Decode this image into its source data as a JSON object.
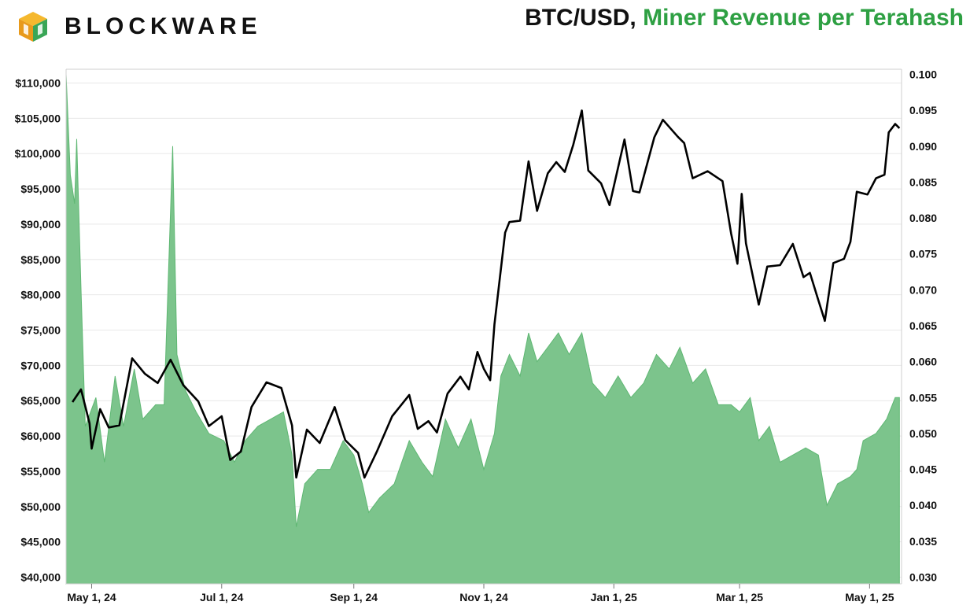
{
  "brand": {
    "name": "BLOCKWARE"
  },
  "title": {
    "part1": "BTC/USD,",
    "part2": "Miner Revenue per Terahash"
  },
  "colors": {
    "price_line": "#000000",
    "revenue_fill": "#7cc48c",
    "revenue_stroke": "#5fb773",
    "title_green": "#2ea043",
    "grid": "#e8e8e8"
  },
  "chart_data": {
    "type": "line",
    "title": "BTC/USD, Miner Revenue per Terahash",
    "xlabel": "",
    "x_ticks": [
      "May 1, 24",
      "Jul 1, 24",
      "Sep 1, 24",
      "Nov 1, 24",
      "Jan 1, 25",
      "Mar 1, 25",
      "May 1, 25"
    ],
    "y_left_ticks": [
      "$40,000",
      "$45,000",
      "$50,000",
      "$55,000",
      "$60,000",
      "$65,000",
      "$70,000",
      "$75,000",
      "$80,000",
      "$85,000",
      "$90,000",
      "$95,000",
      "$100,000",
      "$105,000",
      "$110,000"
    ],
    "y_right_ticks": [
      "0.030",
      "0.035",
      "0.040",
      "0.045",
      "0.050",
      "0.055",
      "0.060",
      "0.065",
      "0.070",
      "0.075",
      "0.080",
      "0.085",
      "0.090",
      "0.095",
      "0.100"
    ],
    "ylim_left": [
      40000,
      110000
    ],
    "ylim_right": [
      0.03,
      0.1
    ],
    "grid": true,
    "series": [
      {
        "name": "BTC/USD",
        "axis": "left",
        "chart": "line",
        "points": [
          [
            "2024-04-22",
            64800
          ],
          [
            "2024-04-26",
            66600
          ],
          [
            "2024-04-30",
            61800
          ],
          [
            "2024-05-01",
            58200
          ],
          [
            "2024-05-05",
            63800
          ],
          [
            "2024-05-09",
            61200
          ],
          [
            "2024-05-14",
            61500
          ],
          [
            "2024-05-20",
            71000
          ],
          [
            "2024-05-26",
            68800
          ],
          [
            "2024-06-01",
            67500
          ],
          [
            "2024-06-07",
            70800
          ],
          [
            "2024-06-13",
            67200
          ],
          [
            "2024-06-20",
            64900
          ],
          [
            "2024-06-25",
            61400
          ],
          [
            "2024-07-01",
            62800
          ],
          [
            "2024-07-05",
            56600
          ],
          [
            "2024-07-10",
            57800
          ],
          [
            "2024-07-15",
            64100
          ],
          [
            "2024-07-22",
            67600
          ],
          [
            "2024-07-29",
            66800
          ],
          [
            "2024-08-03",
            61500
          ],
          [
            "2024-08-05",
            54100
          ],
          [
            "2024-08-10",
            60900
          ],
          [
            "2024-08-16",
            59000
          ],
          [
            "2024-08-23",
            64100
          ],
          [
            "2024-08-28",
            59400
          ],
          [
            "2024-09-03",
            57600
          ],
          [
            "2024-09-06",
            54100
          ],
          [
            "2024-09-12",
            57900
          ],
          [
            "2024-09-19",
            62800
          ],
          [
            "2024-09-27",
            65800
          ],
          [
            "2024-10-01",
            61000
          ],
          [
            "2024-10-06",
            62100
          ],
          [
            "2024-10-10",
            60500
          ],
          [
            "2024-10-15",
            66000
          ],
          [
            "2024-10-21",
            68400
          ],
          [
            "2024-10-25",
            66600
          ],
          [
            "2024-10-29",
            71900
          ],
          [
            "2024-11-01",
            69500
          ],
          [
            "2024-11-04",
            67900
          ],
          [
            "2024-11-06",
            75800
          ],
          [
            "2024-11-11",
            88800
          ],
          [
            "2024-11-13",
            90300
          ],
          [
            "2024-11-18",
            90500
          ],
          [
            "2024-11-22",
            98900
          ],
          [
            "2024-11-26",
            91900
          ],
          [
            "2024-12-01",
            97200
          ],
          [
            "2024-12-05",
            98800
          ],
          [
            "2024-12-09",
            97400
          ],
          [
            "2024-12-13",
            101300
          ],
          [
            "2024-12-17",
            106100
          ],
          [
            "2024-12-20",
            97600
          ],
          [
            "2024-12-26",
            95800
          ],
          [
            "2024-12-30",
            92700
          ],
          [
            "2025-01-06",
            102000
          ],
          [
            "2025-01-10",
            94700
          ],
          [
            "2025-01-13",
            94500
          ],
          [
            "2025-01-20",
            102300
          ],
          [
            "2025-01-24",
            104800
          ],
          [
            "2025-01-31",
            102400
          ],
          [
            "2025-02-03",
            101500
          ],
          [
            "2025-02-07",
            96500
          ],
          [
            "2025-02-14",
            97500
          ],
          [
            "2025-02-21",
            96100
          ],
          [
            "2025-02-25",
            88700
          ],
          [
            "2025-02-28",
            84400
          ],
          [
            "2025-03-02",
            94300
          ],
          [
            "2025-03-04",
            87300
          ],
          [
            "2025-03-10",
            78600
          ],
          [
            "2025-03-14",
            84000
          ],
          [
            "2025-03-20",
            84200
          ],
          [
            "2025-03-26",
            87200
          ],
          [
            "2025-03-31",
            82500
          ],
          [
            "2025-04-03",
            83100
          ],
          [
            "2025-04-07",
            79200
          ],
          [
            "2025-04-10",
            76300
          ],
          [
            "2025-04-14",
            84500
          ],
          [
            "2025-04-19",
            85100
          ],
          [
            "2025-04-22",
            87500
          ],
          [
            "2025-04-25",
            94600
          ],
          [
            "2025-04-30",
            94200
          ],
          [
            "2025-05-04",
            96500
          ],
          [
            "2025-05-08",
            97000
          ],
          [
            "2025-05-10",
            103000
          ],
          [
            "2025-05-13",
            104200
          ],
          [
            "2025-05-15",
            103600
          ]
        ]
      },
      {
        "name": "Miner Revenue per Terahash",
        "axis": "right",
        "chart": "area",
        "points": [
          [
            "2024-04-19",
            0.1
          ],
          [
            "2024-04-21",
            0.086
          ],
          [
            "2024-04-23",
            0.082
          ],
          [
            "2024-04-24",
            0.091
          ],
          [
            "2024-04-26",
            0.07
          ],
          [
            "2024-04-28",
            0.051
          ],
          [
            "2024-05-03",
            0.055
          ],
          [
            "2024-05-07",
            0.046
          ],
          [
            "2024-05-12",
            0.058
          ],
          [
            "2024-05-16",
            0.051
          ],
          [
            "2024-05-21",
            0.059
          ],
          [
            "2024-05-25",
            0.052
          ],
          [
            "2024-05-31",
            0.054
          ],
          [
            "2024-06-04",
            0.054
          ],
          [
            "2024-06-08",
            0.09
          ],
          [
            "2024-06-10",
            0.061
          ],
          [
            "2024-06-14",
            0.056
          ],
          [
            "2024-06-19",
            0.053
          ],
          [
            "2024-06-25",
            0.05
          ],
          [
            "2024-07-02",
            0.049
          ],
          [
            "2024-07-07",
            0.046
          ],
          [
            "2024-07-12",
            0.049
          ],
          [
            "2024-07-18",
            0.051
          ],
          [
            "2024-07-24",
            0.052
          ],
          [
            "2024-07-30",
            0.053
          ],
          [
            "2024-08-03",
            0.047
          ],
          [
            "2024-08-05",
            0.037
          ],
          [
            "2024-08-09",
            0.043
          ],
          [
            "2024-08-15",
            0.045
          ],
          [
            "2024-08-21",
            0.045
          ],
          [
            "2024-08-27",
            0.049
          ],
          [
            "2024-09-01",
            0.047
          ],
          [
            "2024-09-05",
            0.043
          ],
          [
            "2024-09-08",
            0.039
          ],
          [
            "2024-09-13",
            0.041
          ],
          [
            "2024-09-20",
            0.043
          ],
          [
            "2024-09-27",
            0.049
          ],
          [
            "2024-10-03",
            0.046
          ],
          [
            "2024-10-08",
            0.044
          ],
          [
            "2024-10-14",
            0.052
          ],
          [
            "2024-10-20",
            0.048
          ],
          [
            "2024-10-26",
            0.052
          ],
          [
            "2024-11-01",
            0.045
          ],
          [
            "2024-11-06",
            0.05
          ],
          [
            "2024-11-09",
            0.058
          ],
          [
            "2024-11-13",
            0.061
          ],
          [
            "2024-11-18",
            0.058
          ],
          [
            "2024-11-22",
            0.064
          ],
          [
            "2024-11-26",
            0.06
          ],
          [
            "2024-12-01",
            0.062
          ],
          [
            "2024-12-06",
            0.064
          ],
          [
            "2024-12-11",
            0.061
          ],
          [
            "2024-12-17",
            0.064
          ],
          [
            "2024-12-22",
            0.057
          ],
          [
            "2024-12-28",
            0.055
          ],
          [
            "2025-01-03",
            0.058
          ],
          [
            "2025-01-09",
            0.055
          ],
          [
            "2025-01-15",
            0.057
          ],
          [
            "2025-01-21",
            0.061
          ],
          [
            "2025-01-27",
            0.059
          ],
          [
            "2025-02-01",
            0.062
          ],
          [
            "2025-02-07",
            0.057
          ],
          [
            "2025-02-13",
            0.059
          ],
          [
            "2025-02-19",
            0.054
          ],
          [
            "2025-02-25",
            0.054
          ],
          [
            "2025-03-01",
            0.053
          ],
          [
            "2025-03-06",
            0.055
          ],
          [
            "2025-03-10",
            0.049
          ],
          [
            "2025-03-15",
            0.051
          ],
          [
            "2025-03-20",
            0.046
          ],
          [
            "2025-03-26",
            0.047
          ],
          [
            "2025-04-01",
            0.048
          ],
          [
            "2025-04-07",
            0.047
          ],
          [
            "2025-04-11",
            0.04
          ],
          [
            "2025-04-16",
            0.043
          ],
          [
            "2025-04-22",
            0.044
          ],
          [
            "2025-04-25",
            0.045
          ],
          [
            "2025-04-28",
            0.049
          ],
          [
            "2025-05-04",
            0.05
          ],
          [
            "2025-05-09",
            0.052
          ],
          [
            "2025-05-13",
            0.055
          ],
          [
            "2025-05-15",
            0.055
          ]
        ]
      }
    ]
  }
}
